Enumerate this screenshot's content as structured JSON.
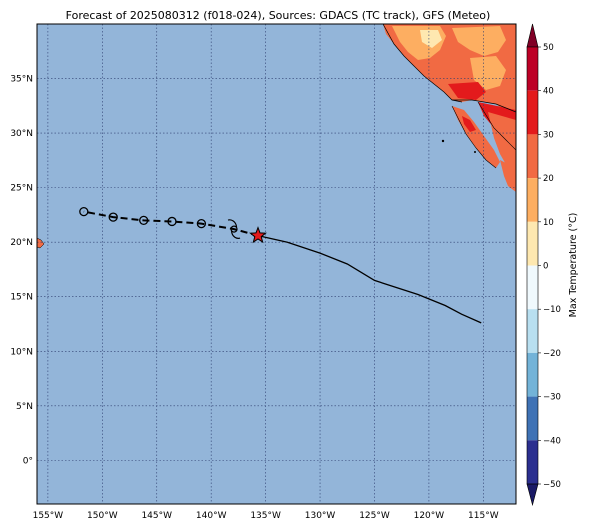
{
  "title": "Forecast of 2025080312 (f018-024), Sources: GDACS (TC track), GFS (Meteo)",
  "map": {
    "lon_range": [
      -156.0,
      -112.0
    ],
    "lat_range": [
      -4.0,
      40.0
    ],
    "ocean_color": "#93b5d9",
    "grid_color": "#2e3e70",
    "lon_ticks": [
      {
        "value": -155,
        "label": "155°W"
      },
      {
        "value": -150,
        "label": "150°W"
      },
      {
        "value": -145,
        "label": "145°W"
      },
      {
        "value": -140,
        "label": "140°W"
      },
      {
        "value": -135,
        "label": "135°W"
      },
      {
        "value": -130,
        "label": "130°W"
      },
      {
        "value": -125,
        "label": "125°W"
      },
      {
        "value": -120,
        "label": "120°W"
      },
      {
        "value": -115,
        "label": "115°W"
      }
    ],
    "lat_ticks": [
      {
        "value": 35,
        "label": "35°N"
      },
      {
        "value": 30,
        "label": "30°N"
      },
      {
        "value": 25,
        "label": "25°N"
      },
      {
        "value": 20,
        "label": "20°N"
      },
      {
        "value": 15,
        "label": "15°N"
      },
      {
        "value": 10,
        "label": "10°N"
      },
      {
        "value": 5,
        "label": "5°N"
      },
      {
        "value": 0,
        "label": "0°"
      }
    ]
  },
  "track": {
    "past": [
      {
        "lon": -115.2,
        "lat": 12.6
      },
      {
        "lon": -117.0,
        "lat": 13.4
      },
      {
        "lon": -118.5,
        "lat": 14.2
      },
      {
        "lon": -121.0,
        "lat": 15.2
      },
      {
        "lon": -125.0,
        "lat": 16.5
      },
      {
        "lon": -127.5,
        "lat": 18.0
      },
      {
        "lon": -130.0,
        "lat": 19.0
      },
      {
        "lon": -133.0,
        "lat": 20.0
      },
      {
        "lon": -135.7,
        "lat": 20.6
      }
    ],
    "current": {
      "lon": -135.7,
      "lat": 20.6
    },
    "forecast": [
      {
        "lon": -135.7,
        "lat": 20.6
      },
      {
        "lon": -137.9,
        "lat": 21.2
      },
      {
        "lon": -140.9,
        "lat": 21.7
      },
      {
        "lon": -143.6,
        "lat": 21.9
      },
      {
        "lon": -146.2,
        "lat": 22.0
      },
      {
        "lon": -149.0,
        "lat": 22.3
      },
      {
        "lon": -151.7,
        "lat": 22.8
      }
    ],
    "forecast_points": [
      {
        "lon": -140.9,
        "lat": 21.7
      },
      {
        "lon": -143.6,
        "lat": 21.9
      },
      {
        "lon": -146.2,
        "lat": 22.0
      },
      {
        "lon": -149.0,
        "lat": 22.3
      },
      {
        "lon": -151.7,
        "lat": 22.8
      }
    ],
    "cyclone_symbol_at": {
      "lon": -137.9,
      "lat": 21.2
    },
    "star_color": "#e41a1c"
  },
  "colorbar": {
    "label": "Max Temperature (°C)",
    "ticks": [
      "50",
      "40",
      "30",
      "20",
      "10",
      "0",
      "−10",
      "−20",
      "−30",
      "−40",
      "−50"
    ],
    "colors": [
      "#800026",
      "#bd0026",
      "#e31a1c",
      "#f16a43",
      "#fdae61",
      "#fee8b0",
      "#f0f9fd",
      "#b8dff0",
      "#73b3d8",
      "#3f72b5",
      "#2b2f8f",
      "#1a1a66"
    ]
  }
}
